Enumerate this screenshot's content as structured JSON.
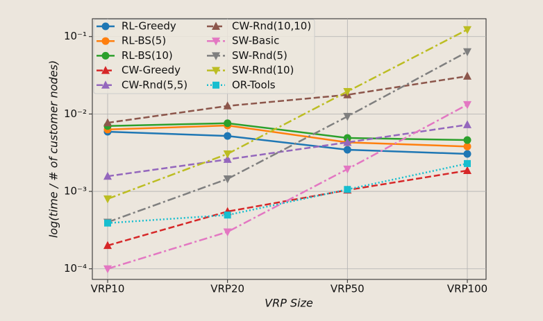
{
  "chart_data": {
    "type": "line",
    "x_label": "VRP Size",
    "y_label": "log(time / # of customer nodes)",
    "categories": [
      "VRP10",
      "VRP20",
      "VRP50",
      "VRP100"
    ],
    "log_y": true,
    "grid": true,
    "legend": "upper left",
    "ylim": [
      7.3e-05,
      0.17
    ],
    "yticks": [
      {
        "value": 0.0001,
        "label": "10⁻⁴"
      },
      {
        "value": 0.001,
        "label": "10⁻³"
      },
      {
        "value": 0.01,
        "label": "10⁻²"
      },
      {
        "value": 0.1,
        "label": "10⁻¹"
      }
    ],
    "series": [
      {
        "name": "RL-Greedy",
        "color": "#1f77b4",
        "dash": "solid",
        "marker": "circle",
        "values": [
          0.0059,
          0.0052,
          0.00345,
          0.00305
        ]
      },
      {
        "name": "RL-BS(5)",
        "color": "#ff7f0e",
        "dash": "solid",
        "marker": "circle",
        "values": [
          0.0063,
          0.0071,
          0.0043,
          0.0038
        ]
      },
      {
        "name": "RL-BS(10)",
        "color": "#2ca02c",
        "dash": "solid",
        "marker": "circle",
        "values": [
          0.007,
          0.0076,
          0.0049,
          0.0046
        ]
      },
      {
        "name": "CW-Greedy",
        "color": "#d62728",
        "dash": "dashed",
        "marker": "triangle-up",
        "values": [
          0.0002,
          0.00055,
          0.00104,
          0.00186
        ]
      },
      {
        "name": "CW-Rnd(5,5)",
        "color": "#9467bd",
        "dash": "dashed",
        "marker": "triangle-up",
        "values": [
          0.00157,
          0.00259,
          0.0043,
          0.00726
        ]
      },
      {
        "name": "CW-Rnd(10,10)",
        "color": "#8c564b",
        "dash": "dashed",
        "marker": "triangle-up",
        "values": [
          0.0077,
          0.0127,
          0.0177,
          0.0308
        ]
      },
      {
        "name": "SW-Basic",
        "color": "#e377c2",
        "dash": "dashdot",
        "marker": "triangle-down",
        "values": [
          0.0001,
          0.0003,
          0.00194,
          0.0132
        ]
      },
      {
        "name": "SW-Rnd(5)",
        "color": "#7f7f7f",
        "dash": "dashdot",
        "marker": "triangle-down",
        "values": [
          0.0004,
          0.00145,
          0.0093,
          0.0636
        ]
      },
      {
        "name": "SW-Rnd(10)",
        "color": "#bcbd22",
        "dash": "dashdot",
        "marker": "triangle-down",
        "values": [
          0.0008,
          0.00305,
          0.0195,
          0.123
        ]
      },
      {
        "name": "OR-Tools",
        "color": "#17becf",
        "dash": "dotted",
        "marker": "square",
        "values": [
          0.00039,
          0.000495,
          0.00106,
          0.00229
        ]
      }
    ]
  }
}
